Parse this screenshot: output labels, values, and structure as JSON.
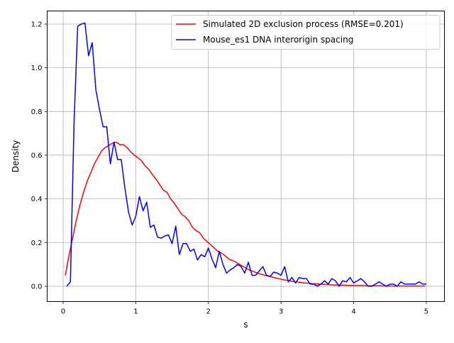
{
  "chart_data": {
    "type": "line",
    "title": "",
    "xlabel": "s",
    "ylabel": "Density",
    "xlim": [
      -0.22,
      5.25
    ],
    "ylim": [
      -0.07,
      1.26
    ],
    "xticks": [
      0,
      1,
      2,
      3,
      4,
      5
    ],
    "xtick_labels": [
      "0",
      "1",
      "2",
      "3",
      "4",
      "5"
    ],
    "yticks": [
      0.0,
      0.2,
      0.4,
      0.6,
      0.8,
      1.0,
      1.2
    ],
    "ytick_labels": [
      "0.0",
      "0.2",
      "0.4",
      "0.6",
      "0.8",
      "1.0",
      "1.2"
    ],
    "grid": true,
    "legend_position": "upper right",
    "series": [
      {
        "name": "Simulated 2D exclusion process (RMSE=0.201)",
        "color": "#ff0000",
        "x": [
          0.03,
          0.08,
          0.13,
          0.18,
          0.23,
          0.28,
          0.33,
          0.38,
          0.43,
          0.48,
          0.53,
          0.58,
          0.63,
          0.68,
          0.73,
          0.78,
          0.83,
          0.88,
          0.93,
          0.98,
          1.03,
          1.08,
          1.13,
          1.18,
          1.23,
          1.28,
          1.33,
          1.38,
          1.43,
          1.48,
          1.53,
          1.58,
          1.63,
          1.68,
          1.73,
          1.78,
          1.83,
          1.88,
          1.93,
          1.98,
          2.03,
          2.08,
          2.13,
          2.18,
          2.23,
          2.28,
          2.33,
          2.38,
          2.43,
          2.48,
          2.53,
          2.58,
          2.63,
          2.68,
          2.73,
          2.78,
          2.83,
          2.88,
          2.93,
          2.98,
          3.03,
          3.08,
          3.13,
          3.18,
          3.23,
          3.28,
          3.33,
          3.38,
          3.43,
          3.48,
          3.53,
          3.58,
          3.63,
          3.68,
          3.73,
          3.78,
          3.83,
          3.88,
          3.93,
          3.98,
          4.03,
          4.08,
          4.13,
          4.18,
          4.23,
          4.28,
          4.33,
          4.38,
          4.43,
          4.48,
          4.53,
          4.58,
          4.63,
          4.68,
          4.73,
          4.78,
          4.83,
          4.88,
          4.93,
          4.98
        ],
        "y": [
          0.05,
          0.14,
          0.22,
          0.3,
          0.37,
          0.43,
          0.48,
          0.52,
          0.56,
          0.59,
          0.62,
          0.635,
          0.645,
          0.655,
          0.66,
          0.648,
          0.648,
          0.635,
          0.615,
          0.6,
          0.588,
          0.575,
          0.55,
          0.535,
          0.51,
          0.49,
          0.465,
          0.44,
          0.43,
          0.4,
          0.38,
          0.355,
          0.33,
          0.318,
          0.3,
          0.27,
          0.255,
          0.245,
          0.22,
          0.205,
          0.19,
          0.175,
          0.16,
          0.152,
          0.14,
          0.125,
          0.118,
          0.11,
          0.1,
          0.09,
          0.08,
          0.072,
          0.066,
          0.06,
          0.055,
          0.05,
          0.046,
          0.042,
          0.038,
          0.034,
          0.03,
          0.027,
          0.024,
          0.021,
          0.019,
          0.017,
          0.015,
          0.014,
          0.012,
          0.011,
          0.01,
          0.009,
          0.008,
          0.007,
          0.006,
          0.006,
          0.005,
          0.005,
          0.004,
          0.004,
          0.003,
          0.003,
          0.003,
          0.002,
          0.002,
          0.002,
          0.002,
          0.002,
          0.001,
          0.001,
          0.001,
          0.001,
          0.001,
          0.001,
          0.001,
          0.001,
          0.001,
          0.001,
          0.001,
          0.001
        ]
      },
      {
        "name": "Mouse_es1 DNA interorigin spacing",
        "color": "#0000ff",
        "x": [
          0.05,
          0.1,
          0.15,
          0.2,
          0.25,
          0.3,
          0.35,
          0.4,
          0.45,
          0.5,
          0.55,
          0.6,
          0.65,
          0.7,
          0.75,
          0.8,
          0.85,
          0.9,
          0.95,
          1.0,
          1.05,
          1.1,
          1.15,
          1.2,
          1.25,
          1.3,
          1.35,
          1.4,
          1.45,
          1.5,
          1.55,
          1.6,
          1.65,
          1.7,
          1.75,
          1.8,
          1.85,
          1.9,
          1.95,
          2.0,
          2.05,
          2.1,
          2.15,
          2.2,
          2.25,
          2.3,
          2.35,
          2.4,
          2.45,
          2.5,
          2.55,
          2.6,
          2.65,
          2.7,
          2.75,
          2.8,
          2.85,
          2.9,
          2.95,
          3.0,
          3.05,
          3.1,
          3.15,
          3.2,
          3.25,
          3.3,
          3.35,
          3.4,
          3.45,
          3.5,
          3.55,
          3.6,
          3.65,
          3.7,
          3.75,
          3.8,
          3.85,
          3.9,
          3.95,
          4.0,
          4.05,
          4.1,
          4.15,
          4.2,
          4.25,
          4.3,
          4.35,
          4.4,
          4.45,
          4.5,
          4.55,
          4.6,
          4.65,
          4.7,
          4.75,
          4.8,
          4.85,
          4.9,
          4.95,
          5.0
        ],
        "y": [
          0.0,
          0.02,
          0.75,
          1.19,
          1.2,
          1.205,
          1.055,
          1.115,
          0.9,
          0.81,
          0.73,
          0.73,
          0.56,
          0.66,
          0.58,
          0.58,
          0.45,
          0.34,
          0.28,
          0.32,
          0.41,
          0.345,
          0.385,
          0.27,
          0.28,
          0.225,
          0.22,
          0.23,
          0.235,
          0.195,
          0.275,
          0.145,
          0.195,
          0.195,
          0.16,
          0.17,
          0.12,
          0.145,
          0.135,
          0.175,
          0.125,
          0.085,
          0.16,
          0.1,
          0.06,
          0.075,
          0.085,
          0.1,
          0.09,
          0.06,
          0.11,
          0.05,
          0.05,
          0.07,
          0.09,
          0.05,
          0.045,
          0.065,
          0.06,
          0.05,
          0.09,
          0.02,
          0.04,
          0.015,
          0.04,
          0.035,
          0.035,
          0.01,
          0.01,
          0.0,
          0.01,
          0.025,
          0.01,
          0.035,
          0.025,
          0.0,
          0.025,
          0.02,
          0.04,
          0.015,
          0.025,
          0.035,
          0.02,
          0.0,
          0.0,
          0.01,
          0.02,
          0.01,
          0.0,
          0.01,
          0.01,
          0.0,
          0.02,
          0.01,
          0.01,
          0.01,
          0.01,
          0.02,
          0.01,
          0.01
        ]
      }
    ]
  }
}
